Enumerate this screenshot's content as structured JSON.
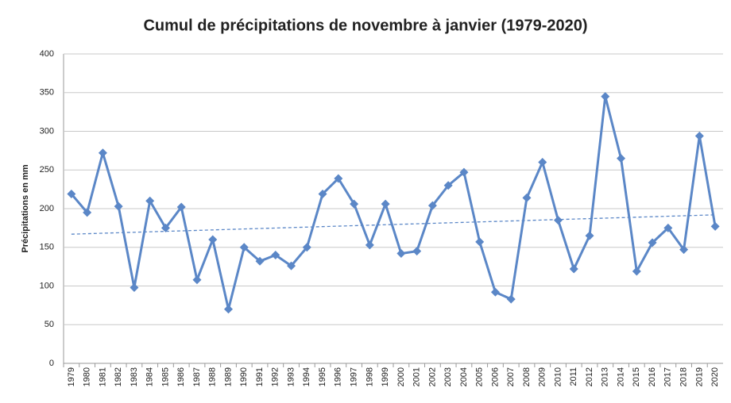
{
  "chart_data": {
    "type": "line",
    "title": "Cumul de précipitations de novembre à janvier (1979-2020)",
    "y_label": "Précipitations en mm",
    "categories": [
      "1979",
      "1980",
      "1981",
      "1982",
      "1983",
      "1984",
      "1985",
      "1986",
      "1987",
      "1988",
      "1989",
      "1990",
      "1991",
      "1992",
      "1993",
      "1994",
      "1995",
      "1996",
      "1997",
      "1998",
      "1999",
      "2000",
      "2001",
      "2002",
      "2003",
      "2004",
      "2005",
      "2006",
      "2007",
      "2008",
      "2009",
      "2010",
      "2011",
      "2012",
      "2013",
      "2014",
      "2015",
      "2016",
      "2017",
      "2018",
      "2019",
      "2020"
    ],
    "values": [
      219,
      195,
      272,
      203,
      98,
      210,
      175,
      202,
      108,
      160,
      70,
      150,
      132,
      140,
      126,
      150,
      219,
      239,
      206,
      153,
      206,
      142,
      145,
      204,
      230,
      247,
      157,
      92,
      83,
      214,
      260,
      185,
      122,
      165,
      345,
      265,
      119,
      156,
      175,
      147,
      294,
      177
    ],
    "color": "#5b87c7",
    "trend": [
      167,
      192
    ],
    "ylim": [
      0,
      400
    ],
    "yticks": [
      0,
      50,
      100,
      150,
      200,
      250,
      300,
      350,
      400
    ],
    "grid": true
  }
}
